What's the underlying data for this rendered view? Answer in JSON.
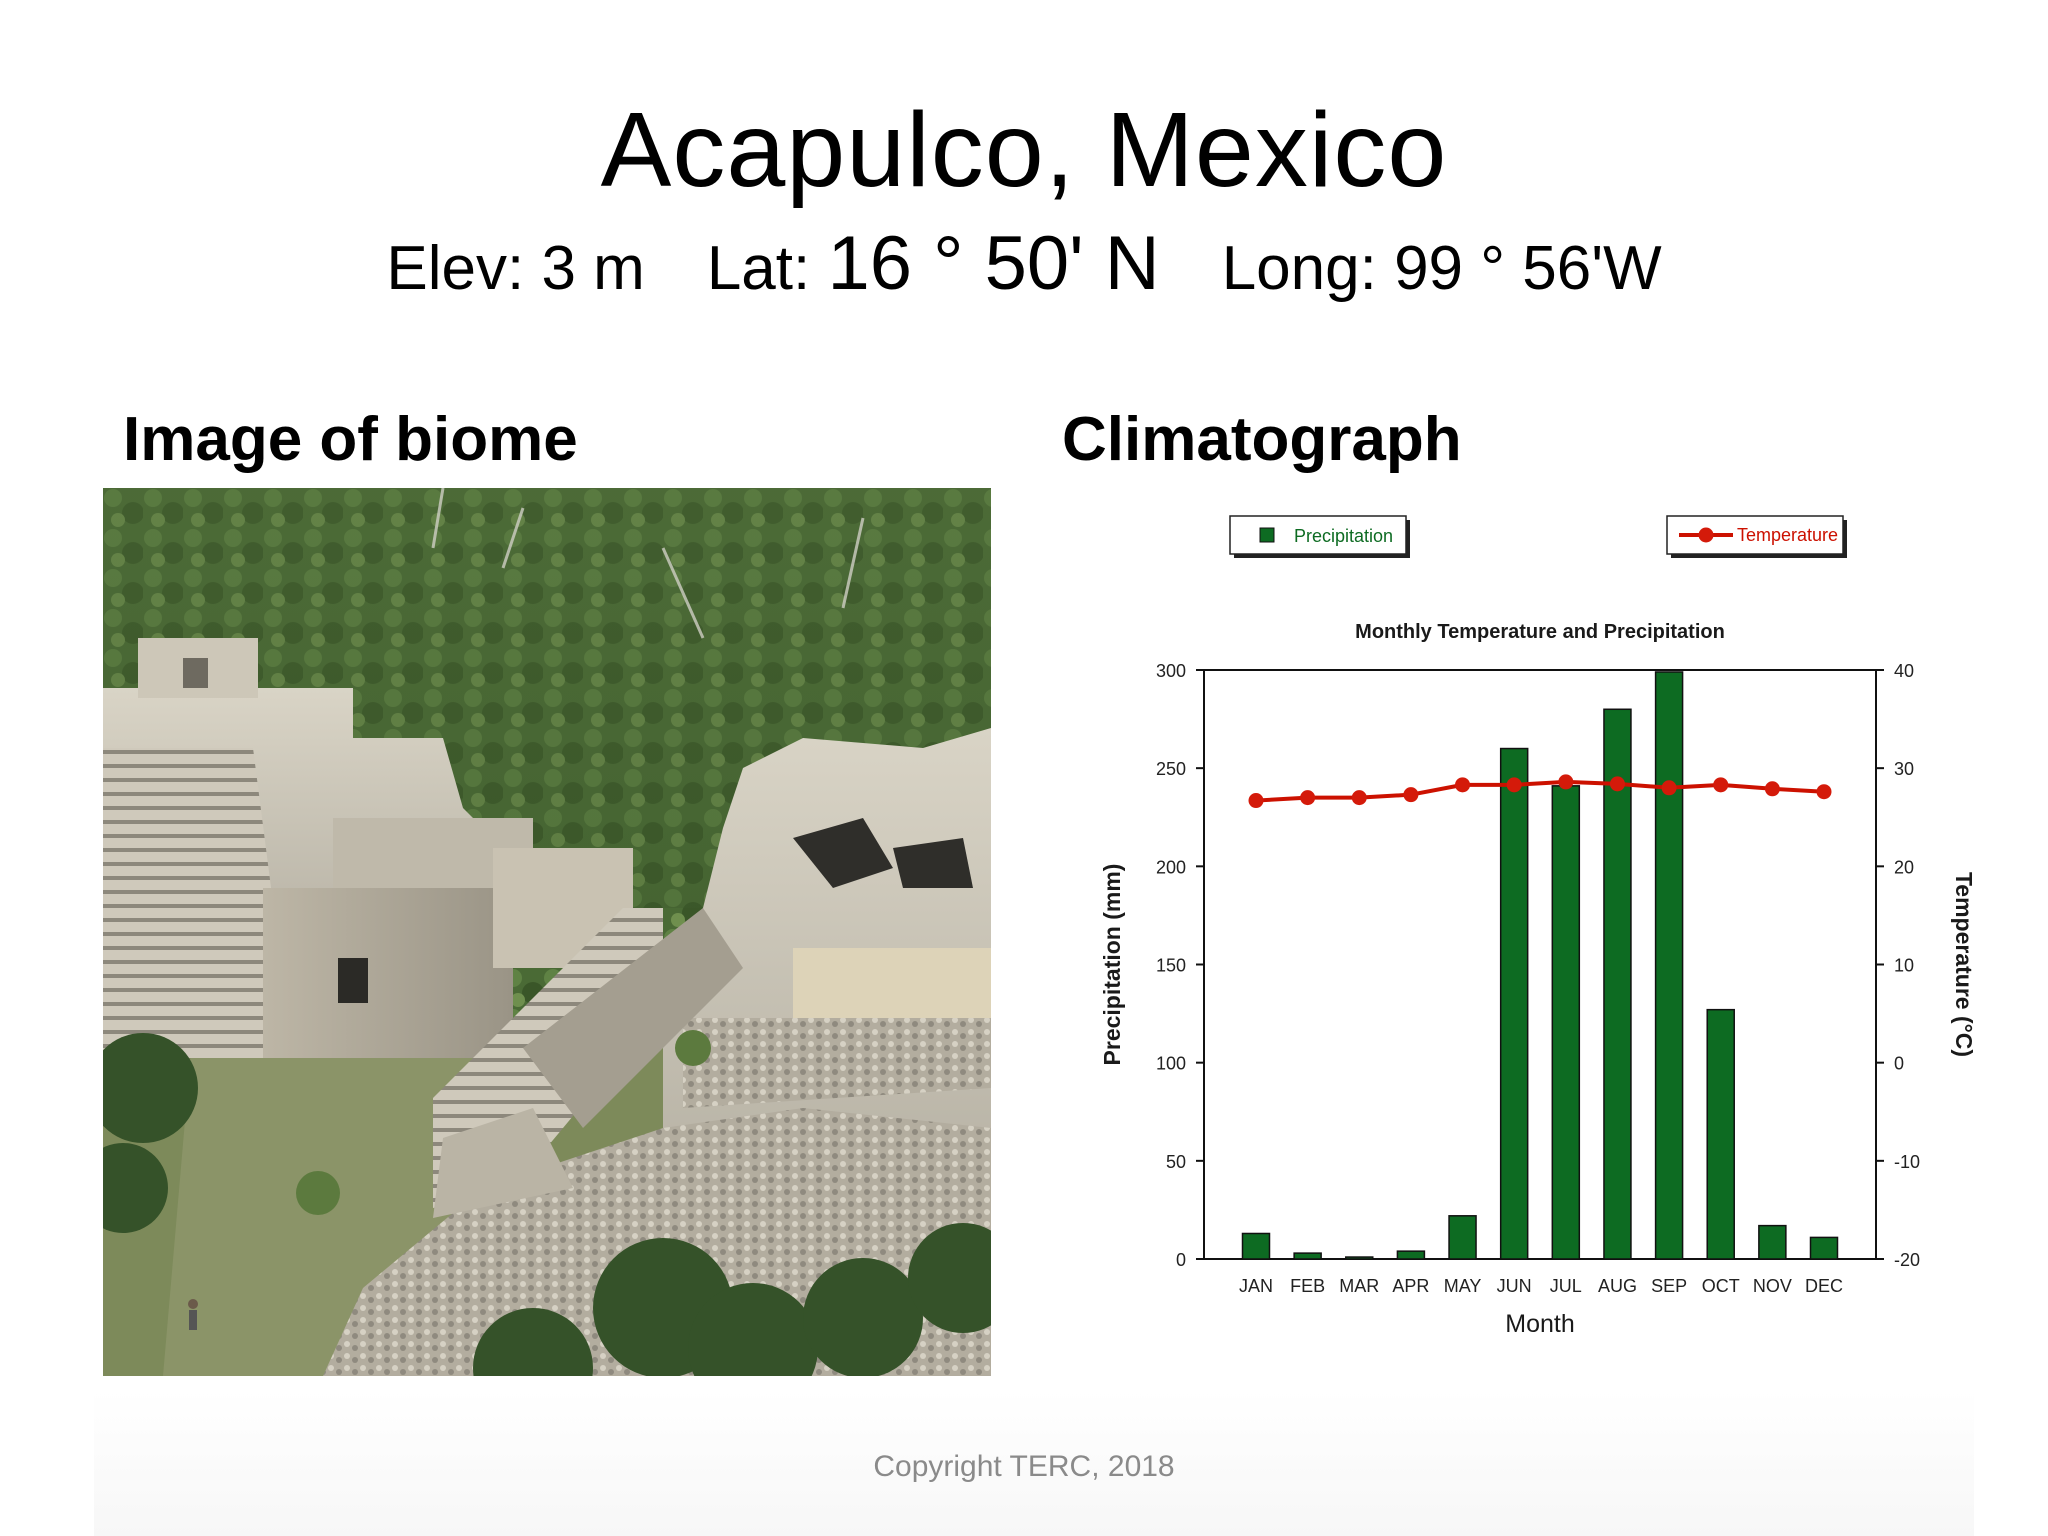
{
  "header": {
    "title": "Acapulco, Mexico",
    "elev": "Elev: 3 m",
    "lat_label": "Lat:",
    "lat_value": "16 ° 50' N",
    "long": "Long: 99 ° 56'W"
  },
  "sections": {
    "image_heading": "Image of biome",
    "chart_heading": "Climatograph"
  },
  "footer": {
    "copyright": "Copyright TERC, 2018"
  },
  "colors": {
    "bar_fill": "#0d6b22",
    "line": "#cc1100",
    "point": "#d41a0a"
  },
  "chart_data": {
    "type": "bar",
    "title": "Monthly Temperature and Precipitation",
    "xlabel": "Month",
    "ylabel": "Precipitation (mm)",
    "y2label": "Temperature (°C)",
    "categories": [
      "JAN",
      "FEB",
      "MAR",
      "APR",
      "MAY",
      "JUN",
      "JUL",
      "AUG",
      "SEP",
      "OCT",
      "NOV",
      "DEC"
    ],
    "ylim": [
      0,
      300
    ],
    "y2lim": [
      -20,
      40
    ],
    "yticks": [
      0,
      50,
      100,
      150,
      200,
      250,
      300
    ],
    "y2ticks": [
      -20,
      -10,
      0,
      10,
      20,
      30,
      40
    ],
    "legend_placement": "top",
    "grid": false,
    "series": [
      {
        "name": "Precipitation",
        "type": "bar",
        "axis": "left",
        "values": [
          13,
          3,
          1,
          4,
          22,
          260,
          241,
          280,
          299,
          127,
          17,
          11
        ]
      },
      {
        "name": "Temperature",
        "type": "line",
        "axis": "right",
        "values": [
          26.7,
          27.0,
          27.0,
          27.3,
          28.3,
          28.3,
          28.6,
          28.4,
          28.0,
          28.3,
          27.9,
          27.6
        ]
      }
    ]
  }
}
